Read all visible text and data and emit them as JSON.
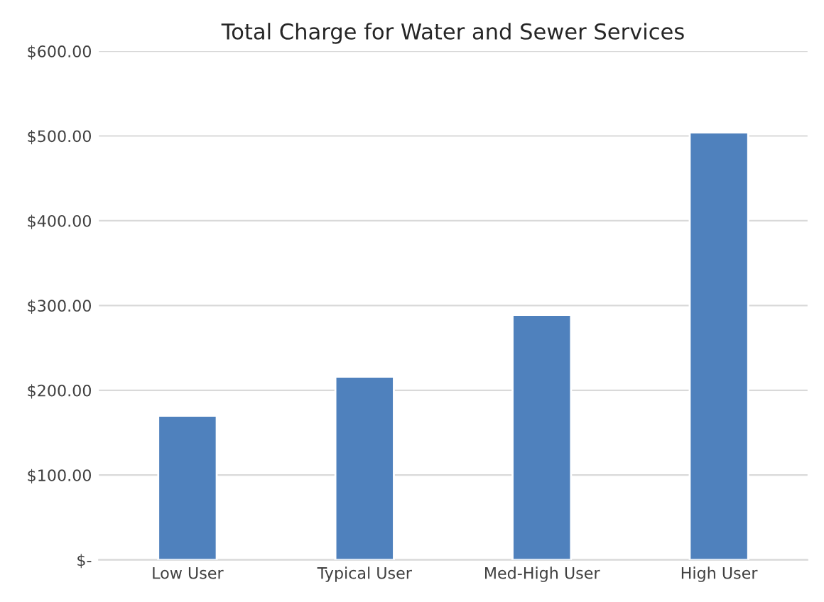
{
  "chart_data": {
    "type": "bar",
    "title": "Total Charge for Water and Sewer Services",
    "categories": [
      "Low User",
      "Typical User",
      "Med-High User",
      "High User"
    ],
    "values": [
      170,
      216,
      289,
      504
    ],
    "color": "#4f81bd",
    "ylim": [
      0,
      600
    ],
    "yticks": [
      {
        "value": 0,
        "label": "$-"
      },
      {
        "value": 100,
        "label": "$100.00"
      },
      {
        "value": 200,
        "label": "$200.00"
      },
      {
        "value": 300,
        "label": "$300.00"
      },
      {
        "value": 400,
        "label": "$400.00"
      },
      {
        "value": 500,
        "label": "$500.00"
      },
      {
        "value": 600,
        "label": "$600.00"
      }
    ],
    "grid": "y",
    "legend": false
  }
}
